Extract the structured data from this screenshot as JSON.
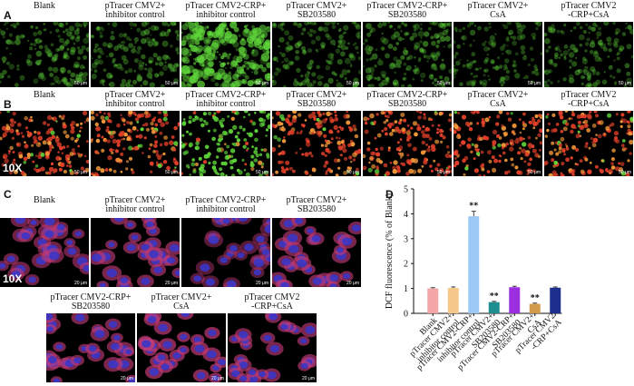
{
  "panels": {
    "A": {
      "letter": "A",
      "captions": [
        {
          "line1": "Blank",
          "line2": ""
        },
        {
          "line1": "pTracer CMV2+",
          "line2": "inhibitor control"
        },
        {
          "line1": "pTracer CMV2-CRP+",
          "line2": "inhibitor control"
        },
        {
          "line1": "pTracer CMV2+",
          "line2": "SB203580"
        },
        {
          "line1": "pTracer CMV2-CRP+",
          "line2": "SB203580"
        },
        {
          "line1": "pTracer CMV2+",
          "line2": "CsA"
        },
        {
          "line1": "pTracer CMV2",
          "line2": "-CRP+CsA"
        }
      ],
      "scale_bar": "50 μm"
    },
    "B": {
      "letter": "B",
      "captions": [
        {
          "line1": "Blank",
          "line2": ""
        },
        {
          "line1": "pTracer CMV2+",
          "line2": "inhibitor control"
        },
        {
          "line1": "pTracer CMV2-CRP+",
          "line2": "inhibitor control"
        },
        {
          "line1": "pTracer CMV2+",
          "line2": "SB203580"
        },
        {
          "line1": "pTracer CMV2-CRP+",
          "line2": "SB203580"
        },
        {
          "line1": "pTracer CMV2+",
          "line2": "CsA"
        },
        {
          "line1": "pTracer CMV2",
          "line2": "-CRP+CsA"
        }
      ],
      "magnification": "10X",
      "scale_bar": "50 μm"
    },
    "C": {
      "letter": "C",
      "captions": [
        {
          "line1": "Blank",
          "line2": ""
        },
        {
          "line1": "pTracer CMV2+",
          "line2": "inhibitor control"
        },
        {
          "line1": "pTracer CMV2-CRP+",
          "line2": "inhibitor control"
        },
        {
          "line1": "pTracer CMV2+",
          "line2": "SB203580"
        },
        {
          "line1": "pTracer CMV2-CRP+",
          "line2": "SB203580"
        },
        {
          "line1": "pTracer CMV2+",
          "line2": "CsA"
        },
        {
          "line1": "pTracer CMV2",
          "line2": "-CRP+CsA"
        }
      ],
      "magnification": "10X",
      "scale_bar": "20 μm"
    },
    "D": {
      "letter": "D"
    }
  },
  "colors": {
    "green_fluor": "#5fd63a",
    "red_fluor": "#e2402a",
    "blue_nuclei": "#3a36c8",
    "magenta_cyto": "#c23a78"
  },
  "chart_data": {
    "type": "bar",
    "ylabel": "DCF fluorescence (% of Blank)",
    "ylim": [
      0,
      5
    ],
    "yticks": [
      "0",
      "1",
      "2",
      "3",
      "4",
      "5"
    ],
    "categories": [
      "Blank",
      "pTracer CMV2+ inhibitor control",
      "pTracer CMV2-CRP+ inhibitor control",
      "pTracer CMV2+ SB203580",
      "pTracer CMV2-CRP+ SB203580",
      "pTracer CMV2+ CsA",
      "pTracer CMV2 -CRP+CsA"
    ],
    "category_lines": [
      [
        "Blank"
      ],
      [
        "pTracer CMV2+",
        "inhibitor control"
      ],
      [
        "pTracer CMV2-CRP+",
        "inhibitor control"
      ],
      [
        "pTracer CMV2+",
        "SB203580"
      ],
      [
        "pTracer CMV2-CRP+",
        "SB203580"
      ],
      [
        "pTracer CMV2+",
        "CsA"
      ],
      [
        "pTracer CMV2",
        "-CRP+CsA"
      ]
    ],
    "values": [
      1.0,
      1.02,
      3.9,
      0.45,
      1.05,
      0.38,
      1.03
    ],
    "errors": [
      0.03,
      0.04,
      0.2,
      0.03,
      0.04,
      0.03,
      0.03
    ],
    "bar_colors": [
      "#f4a6a6",
      "#f6c98a",
      "#9cc8f5",
      "#1e8e8e",
      "#9b2fe0",
      "#d29a4a",
      "#1e2e8e"
    ],
    "annotations": [
      "",
      "",
      "**",
      "**",
      "",
      "**",
      ""
    ]
  }
}
